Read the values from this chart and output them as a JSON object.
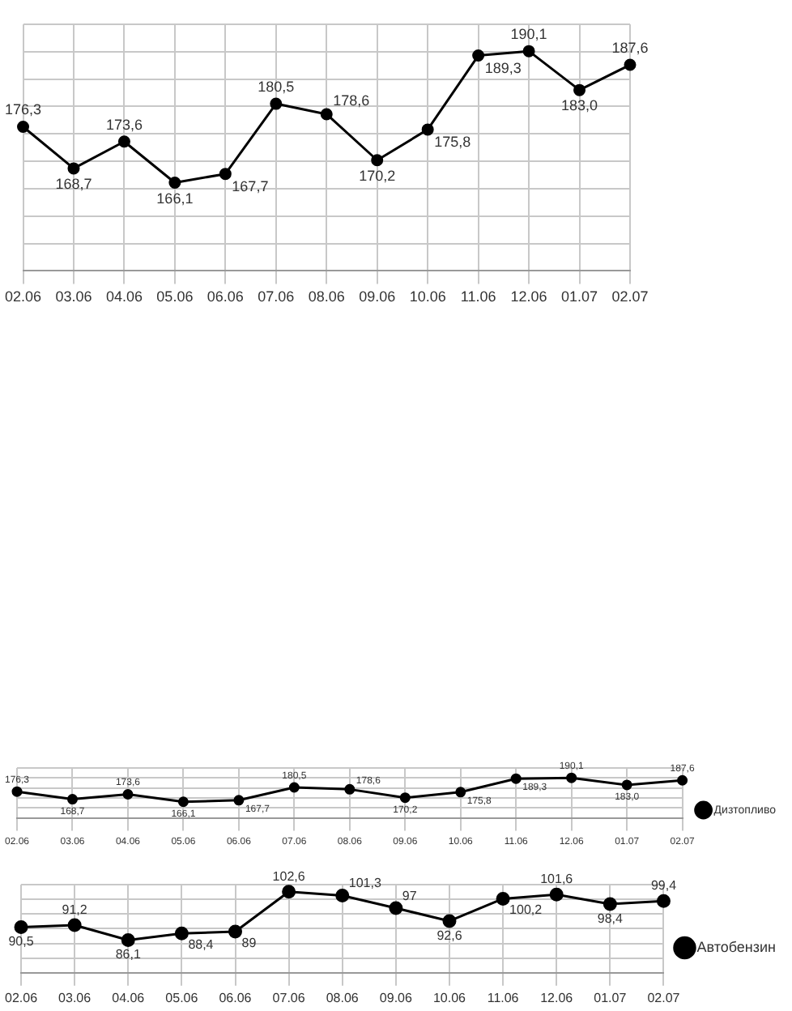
{
  "chart_data": [
    {
      "type": "line",
      "categories": [
        "02.06",
        "03.06",
        "04.06",
        "05.06",
        "06.06",
        "07.06",
        "08.06",
        "09.06",
        "10.06",
        "11.06",
        "12.06",
        "01.07",
        "02.07"
      ],
      "series": [
        {
          "color": "#000000",
          "values": [
            176.3,
            168.7,
            173.6,
            166.1,
            167.7,
            180.5,
            178.6,
            170.2,
            175.8,
            189.3,
            190.1,
            183.0,
            187.6
          ],
          "value_labels": [
            "176,3",
            "168,7",
            "173,6",
            "166,1",
            "167,7",
            "180,5",
            "178,6",
            "170,2",
            "175,8",
            "189,3",
            "190,1",
            "183,0",
            "187,6"
          ]
        }
      ],
      "ylim": [
        150,
        195
      ],
      "yticks": [
        {
          "value": 150,
          "label": null
        },
        {
          "value": 155,
          "label": null
        },
        {
          "value": 160,
          "label": null
        },
        {
          "value": 165,
          "label": null
        },
        {
          "value": 170,
          "label": null
        },
        {
          "value": 175,
          "label": null
        },
        {
          "value": 180,
          "label": null
        },
        {
          "value": 185,
          "label": null
        },
        {
          "value": 190,
          "label": null
        },
        {
          "value": 195,
          "label": null
        }
      ],
      "tick_labels": "x",
      "grid": true,
      "legend": false,
      "marker": "circle",
      "line_style": "solid"
    },
    {
      "type": "line",
      "categories": [
        "02.06",
        "03.06",
        "04.06",
        "05.06",
        "06.06",
        "07.06",
        "08.06",
        "09.06",
        "10.06",
        "11.06",
        "12.06",
        "01.07",
        "02.07"
      ],
      "series": [
        {
          "name": "Дизтопливо",
          "color": "#000000",
          "values": [
            176.3,
            168.7,
            173.6,
            166.1,
            167.7,
            180.5,
            178.6,
            170.2,
            175.8,
            189.3,
            190.1,
            183.0,
            187.6
          ],
          "value_labels": [
            "176,3",
            "168,7",
            "173,6",
            "166,1",
            "167,7",
            "180,5",
            "178,6",
            "170,2",
            "175,8",
            "189,3",
            "190,1",
            "183,0",
            "187,6"
          ]
        }
      ],
      "ylim": [
        150,
        200
      ],
      "yticks": [
        {
          "value": 150,
          "label": null
        },
        {
          "value": 160,
          "label": null
        },
        {
          "value": 170,
          "label": null
        },
        {
          "value": 180,
          "label": null
        },
        {
          "value": 190,
          "label": null
        },
        {
          "value": 200,
          "label": null
        }
      ],
      "tick_labels": "x",
      "grid": true,
      "legend": "right",
      "marker": "circle",
      "line_style": "solid"
    },
    {
      "type": "line",
      "categories": [
        "02.06",
        "03.06",
        "04.06",
        "05.06",
        "06.06",
        "07.06",
        "08.06",
        "09.06",
        "10.06",
        "11.06",
        "12.06",
        "01.07",
        "02.07"
      ],
      "series": [
        {
          "name": "Автобензин",
          "color": "#000000",
          "values": [
            90.5,
            91.2,
            86.1,
            88.4,
            89,
            102.6,
            101.3,
            97,
            92.6,
            100.2,
            101.6,
            98.4,
            99.4
          ],
          "value_labels": [
            "90,5",
            "91,2",
            "86,1",
            "88,4",
            "89",
            "102,6",
            "101,3",
            "97",
            "92,6",
            "100,2",
            "101,6",
            "98,4",
            "99,4"
          ]
        }
      ],
      "ylim": [
        75,
        105
      ],
      "yticks": [
        {
          "value": 75,
          "label": null
        },
        {
          "value": 80,
          "label": null
        },
        {
          "value": 85,
          "label": null
        },
        {
          "value": 90,
          "label": null
        },
        {
          "value": 95,
          "label": null
        },
        {
          "value": 100,
          "label": null
        },
        {
          "value": 105,
          "label": null
        }
      ],
      "tick_labels": "x",
      "grid": true,
      "legend": "right",
      "marker": "circle",
      "line_style": "solid"
    }
  ]
}
